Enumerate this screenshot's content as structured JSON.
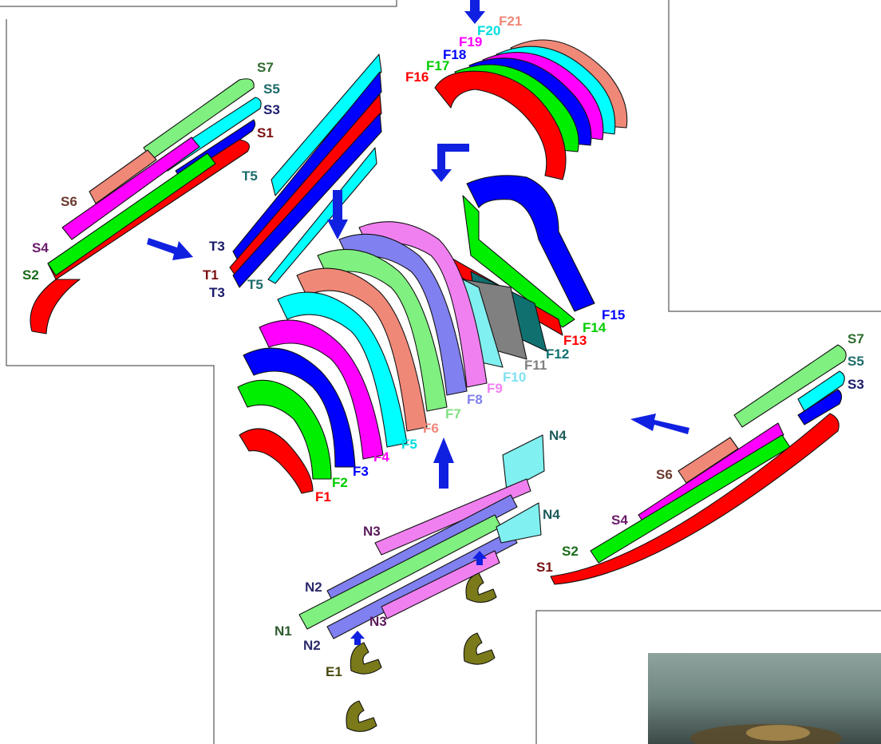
{
  "colors": {
    "red": "#ff0000",
    "green": "#00ee00",
    "blue": "#0000ff",
    "magenta": "#ff00ff",
    "cyan": "#00ffff",
    "salmon": "#f08878",
    "lightgreen": "#80f080",
    "periwinkle": "#8080f0",
    "pink": "#f080f0",
    "lightcyan": "#80f0f0",
    "gray": "#808080",
    "teal": "#107070",
    "olive": "#7a7a1a",
    "arrow": "#1020e0"
  },
  "labels": {
    "s_left": [
      "S7",
      "S5",
      "S3",
      "S1",
      "S6",
      "S4",
      "S2"
    ],
    "t_left": [
      "T5",
      "T3",
      "T1",
      "T3",
      "T5"
    ],
    "f_top": [
      "F16",
      "F17",
      "F18",
      "F19",
      "F20",
      "F21"
    ],
    "f_center": [
      "F1",
      "F2",
      "F3",
      "F4",
      "F5",
      "F6",
      "F7",
      "F8",
      "F9",
      "F10",
      "F11",
      "F12",
      "F13",
      "F14",
      "F15"
    ],
    "s_right": [
      "S7",
      "S5",
      "S3",
      "S6",
      "S4",
      "S2",
      "S1"
    ],
    "n": [
      "N4",
      "N4",
      "N3",
      "N2",
      "N1",
      "N2",
      "N3"
    ],
    "e": [
      "E1"
    ]
  }
}
